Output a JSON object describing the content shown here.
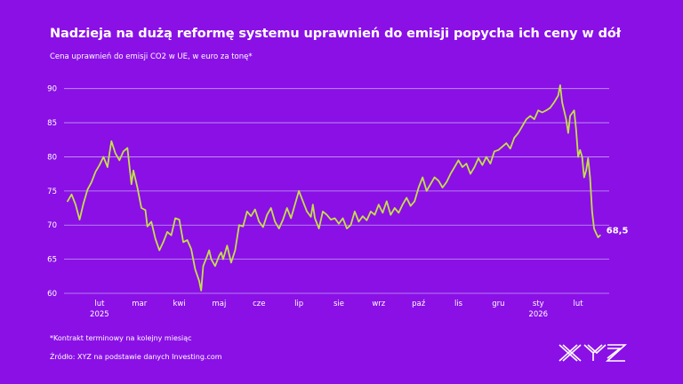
{
  "title": "Nadzieja na dużą reformę systemu uprawnień do emisji popycha ich ceny w dół",
  "subtitle": "Cena uprawnień do emisji CO2 w UE, w euro za tonę*",
  "footnote": "*Kontrakt terminowy na kolejny miesiąc",
  "source": "Źródło: XYZ na podstawie danych Investing.com",
  "logo_text": "XYZ",
  "colors": {
    "background": "#8a10e6",
    "line": "#c3e04a",
    "grid": "#c79ef2",
    "text": "#ffffff"
  },
  "chart_data": {
    "type": "line",
    "title": "Nadzieja na dużą reformę systemu uprawnień do emisji popycha ich ceny w dół",
    "subtitle": "Cena uprawnień do emisji CO2 w UE, w euro za tonę*",
    "ylim": [
      60,
      91
    ],
    "yticks": [
      60,
      65,
      70,
      75,
      80,
      85,
      90
    ],
    "grid": true,
    "x_ticks": [
      {
        "label": "lut",
        "year": "2025",
        "x": 1.5
      },
      {
        "label": "mar",
        "year": "",
        "x": 2.5
      },
      {
        "label": "kwi",
        "year": "",
        "x": 3.5
      },
      {
        "label": "maj",
        "year": "",
        "x": 4.5
      },
      {
        "label": "cze",
        "year": "",
        "x": 5.5
      },
      {
        "label": "lip",
        "year": "",
        "x": 6.5
      },
      {
        "label": "sie",
        "year": "",
        "x": 7.5
      },
      {
        "label": "wrz",
        "year": "",
        "x": 8.5
      },
      {
        "label": "paź",
        "year": "",
        "x": 9.5
      },
      {
        "label": "lis",
        "year": "",
        "x": 10.5
      },
      {
        "label": "gru",
        "year": "",
        "x": 11.5
      },
      {
        "label": "sty",
        "year": "2026",
        "x": 12.5
      },
      {
        "label": "lut",
        "year": "",
        "x": 13.5
      }
    ],
    "x_range": [
      0.7,
      14.1
    ],
    "last_value_label": "68,5",
    "series": [
      {
        "values": [
          [
            0.7,
            73.5
          ],
          [
            0.8,
            74.5
          ],
          [
            0.9,
            73.0
          ],
          [
            1.0,
            70.8
          ],
          [
            1.1,
            73.2
          ],
          [
            1.2,
            75.2
          ],
          [
            1.3,
            76.3
          ],
          [
            1.4,
            77.8
          ],
          [
            1.5,
            78.8
          ],
          [
            1.6,
            80.0
          ],
          [
            1.7,
            78.5
          ],
          [
            1.75,
            80.5
          ],
          [
            1.8,
            82.3
          ],
          [
            1.9,
            80.5
          ],
          [
            2.0,
            79.5
          ],
          [
            2.1,
            80.8
          ],
          [
            2.2,
            81.3
          ],
          [
            2.3,
            76.0
          ],
          [
            2.35,
            78.0
          ],
          [
            2.45,
            75.5
          ],
          [
            2.55,
            72.5
          ],
          [
            2.65,
            72.2
          ],
          [
            2.7,
            69.8
          ],
          [
            2.8,
            70.5
          ],
          [
            2.9,
            68.0
          ],
          [
            3.0,
            66.3
          ],
          [
            3.1,
            67.5
          ],
          [
            3.2,
            69.0
          ],
          [
            3.3,
            68.5
          ],
          [
            3.4,
            71.0
          ],
          [
            3.5,
            70.8
          ],
          [
            3.6,
            67.5
          ],
          [
            3.7,
            67.8
          ],
          [
            3.8,
            66.5
          ],
          [
            3.9,
            63.5
          ],
          [
            4.0,
            61.8
          ],
          [
            4.05,
            60.4
          ],
          [
            4.1,
            64.0
          ],
          [
            4.2,
            65.5
          ],
          [
            4.25,
            66.3
          ],
          [
            4.3,
            65.0
          ],
          [
            4.4,
            64.0
          ],
          [
            4.5,
            65.5
          ],
          [
            4.55,
            66.0
          ],
          [
            4.6,
            65.0
          ],
          [
            4.7,
            67.0
          ],
          [
            4.8,
            64.5
          ],
          [
            4.9,
            66.3
          ],
          [
            5.0,
            70.0
          ],
          [
            5.1,
            69.8
          ],
          [
            5.2,
            72.0
          ],
          [
            5.3,
            71.3
          ],
          [
            5.4,
            72.3
          ],
          [
            5.5,
            70.5
          ],
          [
            5.6,
            69.7
          ],
          [
            5.7,
            71.5
          ],
          [
            5.8,
            72.5
          ],
          [
            5.9,
            70.5
          ],
          [
            6.0,
            69.5
          ],
          [
            6.1,
            70.8
          ],
          [
            6.2,
            72.5
          ],
          [
            6.3,
            71.0
          ],
          [
            6.4,
            73.0
          ],
          [
            6.5,
            75.0
          ],
          [
            6.6,
            73.5
          ],
          [
            6.7,
            72.0
          ],
          [
            6.8,
            71.2
          ],
          [
            6.85,
            73.0
          ],
          [
            6.9,
            71.0
          ],
          [
            7.0,
            69.5
          ],
          [
            7.1,
            72.0
          ],
          [
            7.2,
            71.5
          ],
          [
            7.3,
            70.8
          ],
          [
            7.4,
            71.0
          ],
          [
            7.5,
            70.2
          ],
          [
            7.6,
            71.0
          ],
          [
            7.7,
            69.5
          ],
          [
            7.8,
            70.0
          ],
          [
            7.9,
            72.0
          ],
          [
            8.0,
            70.5
          ],
          [
            8.1,
            71.3
          ],
          [
            8.2,
            70.7
          ],
          [
            8.3,
            72.0
          ],
          [
            8.4,
            71.5
          ],
          [
            8.5,
            73.0
          ],
          [
            8.6,
            71.8
          ],
          [
            8.7,
            73.5
          ],
          [
            8.8,
            71.5
          ],
          [
            8.9,
            72.5
          ],
          [
            9.0,
            71.8
          ],
          [
            9.1,
            73.0
          ],
          [
            9.2,
            74.0
          ],
          [
            9.3,
            72.8
          ],
          [
            9.4,
            73.5
          ],
          [
            9.5,
            75.5
          ],
          [
            9.6,
            77.0
          ],
          [
            9.7,
            75.0
          ],
          [
            9.8,
            76.0
          ],
          [
            9.9,
            77.0
          ],
          [
            10.0,
            76.5
          ],
          [
            10.1,
            75.5
          ],
          [
            10.2,
            76.3
          ],
          [
            10.3,
            77.5
          ],
          [
            10.4,
            78.5
          ],
          [
            10.5,
            79.5
          ],
          [
            10.6,
            78.5
          ],
          [
            10.7,
            79.0
          ],
          [
            10.8,
            77.5
          ],
          [
            10.9,
            78.5
          ],
          [
            11.0,
            79.8
          ],
          [
            11.1,
            78.8
          ],
          [
            11.2,
            80.0
          ],
          [
            11.3,
            79.0
          ],
          [
            11.4,
            80.8
          ],
          [
            11.5,
            81.0
          ],
          [
            11.6,
            81.5
          ],
          [
            11.7,
            82.0
          ],
          [
            11.8,
            81.2
          ],
          [
            11.9,
            82.8
          ],
          [
            12.0,
            83.5
          ],
          [
            12.1,
            84.5
          ],
          [
            12.2,
            85.5
          ],
          [
            12.3,
            86.0
          ],
          [
            12.4,
            85.5
          ],
          [
            12.5,
            86.8
          ],
          [
            12.6,
            86.5
          ],
          [
            12.7,
            86.8
          ],
          [
            12.8,
            87.2
          ],
          [
            12.9,
            88.0
          ],
          [
            13.0,
            89.0
          ],
          [
            13.05,
            90.5
          ],
          [
            13.1,
            88.0
          ],
          [
            13.2,
            85.5
          ],
          [
            13.25,
            83.5
          ],
          [
            13.3,
            86.0
          ],
          [
            13.4,
            86.8
          ],
          [
            13.45,
            84.0
          ],
          [
            13.5,
            80.0
          ],
          [
            13.55,
            81.0
          ],
          [
            13.6,
            80.0
          ],
          [
            13.65,
            77.0
          ],
          [
            13.7,
            78.0
          ],
          [
            13.75,
            79.8
          ],
          [
            13.8,
            77.0
          ],
          [
            13.85,
            72.0
          ],
          [
            13.9,
            69.5
          ],
          [
            13.95,
            68.8
          ],
          [
            14.0,
            68.2
          ],
          [
            14.05,
            68.5
          ]
        ]
      }
    ]
  }
}
